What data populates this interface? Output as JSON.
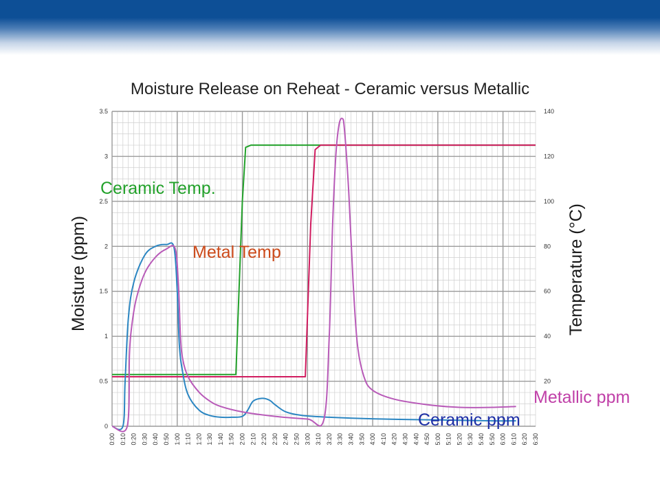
{
  "slide": {
    "banner_color": "#0d4f96"
  },
  "chart_data": {
    "type": "line",
    "title": "Moisture Release on Reheat - Ceramic versus Metallic",
    "xlabel": "",
    "ylabel": "Moisture (ppm)",
    "y2label": "Temperature (°C)",
    "xlim": [
      0,
      390
    ],
    "ylim": [
      0,
      3.5
    ],
    "y2lim": [
      0,
      140
    ],
    "grid": true,
    "x_ticks": [
      "0:00",
      "0:10",
      "0:20",
      "0:30",
      "0:40",
      "0:50",
      "1:00",
      "1:10",
      "1:20",
      "1:30",
      "1:40",
      "1:50",
      "2:00",
      "2:10",
      "2:20",
      "2:30",
      "2:40",
      "2:50",
      "3:00",
      "3:10",
      "3:20",
      "3:30",
      "3:40",
      "3:50",
      "4:00",
      "4:10",
      "4:20",
      "4:30",
      "4:40",
      "4:50",
      "5:00",
      "5:10",
      "5:20",
      "5:30",
      "5:40",
      "5:50",
      "6:00",
      "6:10",
      "6:20",
      "6:30"
    ],
    "y_ticks": [
      "0",
      "0.5",
      "1",
      "1.5",
      "2",
      "2.5",
      "3",
      "3.5"
    ],
    "y2_ticks": [
      "20",
      "40",
      "60",
      "80",
      "100",
      "120",
      "140"
    ],
    "series": [
      {
        "name": "Ceramic Temp.",
        "axis": "right",
        "color": "#22a12a",
        "label_color": "#22a12a",
        "x": [
          0,
          114,
          120,
          123,
          128,
          390
        ],
        "y": [
          23,
          23,
          100,
          124,
          125,
          125
        ]
      },
      {
        "name": "Metal Temp",
        "axis": "right",
        "color": "#d01a5e",
        "label_color": "#cc4a1a",
        "x": [
          0,
          178,
          183,
          187,
          192,
          390
        ],
        "y": [
          22,
          22,
          90,
          123,
          125,
          125
        ]
      },
      {
        "name": "Ceramic ppm",
        "axis": "left",
        "color": "#2b86c2",
        "label_color": "#1d2fa6",
        "x": [
          0,
          10,
          12,
          15,
          20,
          30,
          40,
          50,
          57,
          60,
          62,
          65,
          70,
          80,
          90,
          100,
          110,
          120,
          125,
          130,
          138,
          145,
          150,
          160,
          175,
          200,
          250,
          300,
          350,
          372
        ],
        "y": [
          0,
          0,
          0.5,
          1.2,
          1.6,
          1.9,
          2.0,
          2.02,
          1.99,
          1.5,
          0.9,
          0.6,
          0.35,
          0.18,
          0.12,
          0.1,
          0.1,
          0.11,
          0.18,
          0.28,
          0.31,
          0.29,
          0.24,
          0.16,
          0.12,
          0.1,
          0.08,
          0.07,
          0.06,
          0.06
        ]
      },
      {
        "name": "Metallic ppm",
        "axis": "left",
        "color": "#b85ab8",
        "label_color": "#c040a8",
        "x": [
          0,
          14,
          16,
          18,
          22,
          30,
          40,
          50,
          58,
          61,
          63,
          65,
          70,
          80,
          90,
          100,
          120,
          150,
          180,
          195,
          200,
          203,
          206,
          209,
          212,
          214,
          218,
          222,
          226,
          232,
          240,
          260,
          290,
          320,
          350,
          372
        ],
        "y": [
          0,
          0,
          0.8,
          1.1,
          1.4,
          1.7,
          1.88,
          1.97,
          1.98,
          1.6,
          1.0,
          0.75,
          0.55,
          0.38,
          0.28,
          0.22,
          0.16,
          0.11,
          0.08,
          0.07,
          1.0,
          2.2,
          3.0,
          3.35,
          3.42,
          3.3,
          2.6,
          1.6,
          0.9,
          0.55,
          0.4,
          0.3,
          0.24,
          0.21,
          0.21,
          0.22
        ]
      }
    ]
  }
}
